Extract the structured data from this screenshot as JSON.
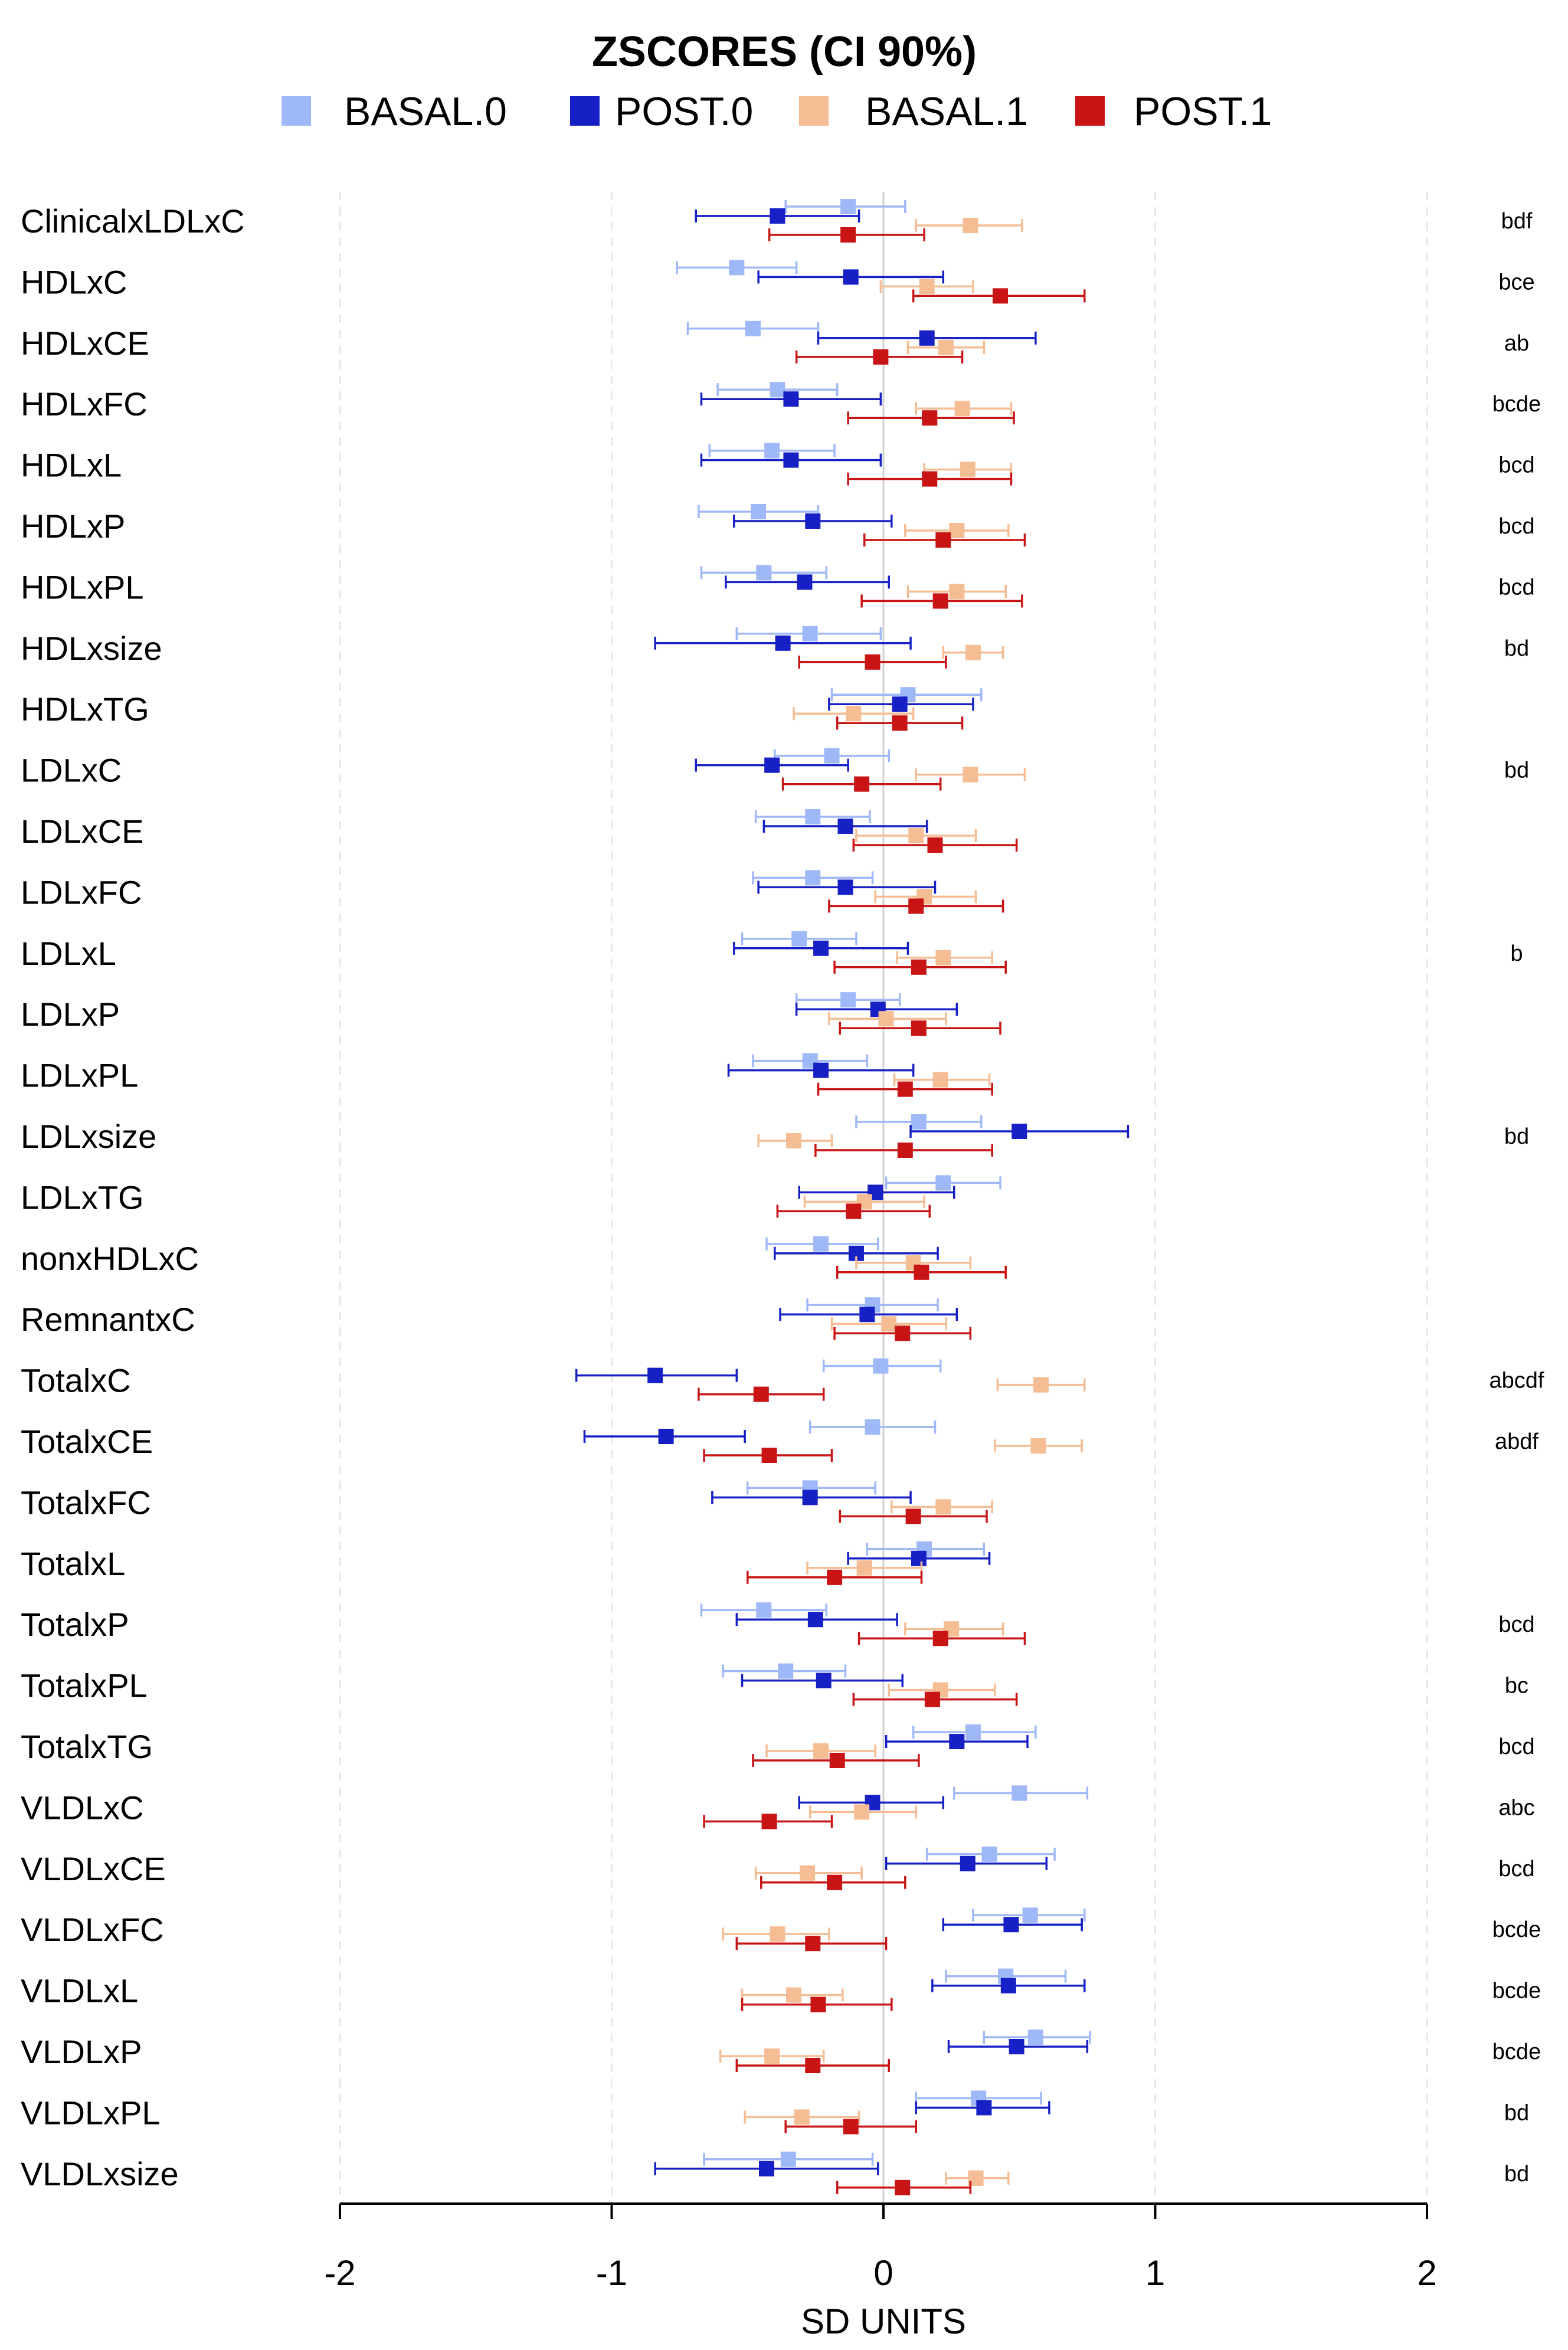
{
  "chart_data": {
    "type": "forest",
    "title": "ZSCORES (CI 90%)",
    "xlabel": "SD UNITS",
    "ylabel": "",
    "xlim": [
      -2,
      2
    ],
    "xticks": [
      "-2",
      "-1",
      "0",
      "1",
      "2"
    ],
    "xtick_values": [
      -2,
      -1,
      0,
      1,
      2
    ],
    "gridlines": "dashed vertical at -2, -1, 1, 2; solid at 0",
    "legend_position": "top",
    "series": [
      {
        "name": "BASAL.0",
        "color": "#9fb8f7"
      },
      {
        "name": "POST.0",
        "color": "#1620c4"
      },
      {
        "name": "BASAL.1",
        "color": "#f5bd93"
      },
      {
        "name": "POST.1",
        "color": "#c81414"
      }
    ],
    "rows": [
      {
        "label": "ClinicalxLDLxC",
        "sig": "bdf",
        "values": [
          [
            -0.13,
            -0.36,
            0.08
          ],
          [
            -0.39,
            -0.69,
            -0.09
          ],
          [
            0.32,
            0.12,
            0.51
          ],
          [
            -0.13,
            -0.42,
            0.15
          ]
        ]
      },
      {
        "label": "HDLxC",
        "sig": "bce",
        "values": [
          [
            -0.54,
            -0.76,
            -0.32
          ],
          [
            -0.12,
            -0.46,
            0.22
          ],
          [
            0.16,
            -0.01,
            0.33
          ],
          [
            0.43,
            0.11,
            0.74
          ]
        ]
      },
      {
        "label": "HDLxCE",
        "sig": "ab",
        "values": [
          [
            -0.48,
            -0.72,
            -0.24
          ],
          [
            0.16,
            -0.24,
            0.56
          ],
          [
            0.23,
            0.09,
            0.37
          ],
          [
            -0.01,
            -0.32,
            0.29
          ]
        ]
      },
      {
        "label": "HDLxFC",
        "sig": "bcde",
        "values": [
          [
            -0.39,
            -0.61,
            -0.17
          ],
          [
            -0.34,
            -0.67,
            -0.01
          ],
          [
            0.29,
            0.12,
            0.47
          ],
          [
            0.17,
            -0.13,
            0.48
          ]
        ]
      },
      {
        "label": "HDLxL",
        "sig": "bcd",
        "values": [
          [
            -0.41,
            -0.64,
            -0.18
          ],
          [
            -0.34,
            -0.67,
            -0.01
          ],
          [
            0.31,
            0.15,
            0.47
          ],
          [
            0.17,
            -0.13,
            0.47
          ]
        ]
      },
      {
        "label": "HDLxP",
        "sig": "bcd",
        "values": [
          [
            -0.46,
            -0.68,
            -0.24
          ],
          [
            -0.26,
            -0.55,
            0.03
          ],
          [
            0.27,
            0.08,
            0.46
          ],
          [
            0.22,
            -0.07,
            0.52
          ]
        ]
      },
      {
        "label": "HDLxPL",
        "sig": "bcd",
        "values": [
          [
            -0.44,
            -0.67,
            -0.21
          ],
          [
            -0.29,
            -0.58,
            0.02
          ],
          [
            0.27,
            0.09,
            0.45
          ],
          [
            0.21,
            -0.08,
            0.51
          ]
        ]
      },
      {
        "label": "HDLxsize",
        "sig": "bd",
        "values": [
          [
            -0.27,
            -0.54,
            -0.01
          ],
          [
            -0.37,
            -0.84,
            0.1
          ],
          [
            0.33,
            0.22,
            0.44
          ],
          [
            -0.04,
            -0.31,
            0.23
          ]
        ]
      },
      {
        "label": "HDLxTG",
        "sig": "",
        "values": [
          [
            0.09,
            -0.19,
            0.36
          ],
          [
            0.06,
            -0.2,
            0.33
          ],
          [
            -0.11,
            -0.33,
            0.11
          ],
          [
            0.06,
            -0.17,
            0.29
          ]
        ]
      },
      {
        "label": "LDLxC",
        "sig": "bd",
        "values": [
          [
            -0.19,
            -0.4,
            0.02
          ],
          [
            -0.41,
            -0.69,
            -0.13
          ],
          [
            0.32,
            0.12,
            0.52
          ],
          [
            -0.08,
            -0.37,
            0.21
          ]
        ]
      },
      {
        "label": "LDLxCE",
        "sig": "",
        "values": [
          [
            -0.26,
            -0.47,
            -0.05
          ],
          [
            -0.14,
            -0.44,
            0.16
          ],
          [
            0.12,
            -0.1,
            0.34
          ],
          [
            0.19,
            -0.11,
            0.49
          ]
        ]
      },
      {
        "label": "LDLxFC",
        "sig": "",
        "values": [
          [
            -0.26,
            -0.48,
            -0.04
          ],
          [
            -0.14,
            -0.46,
            0.19
          ],
          [
            0.15,
            -0.03,
            0.34
          ],
          [
            0.12,
            -0.2,
            0.44
          ]
        ]
      },
      {
        "label": "LDLxL",
        "sig": "b",
        "values": [
          [
            -0.31,
            -0.52,
            -0.1
          ],
          [
            -0.23,
            -0.55,
            0.09
          ],
          [
            0.22,
            0.05,
            0.4
          ],
          [
            0.13,
            -0.18,
            0.45
          ]
        ]
      },
      {
        "label": "LDLxP",
        "sig": "",
        "values": [
          [
            -0.13,
            -0.32,
            0.06
          ],
          [
            -0.02,
            -0.32,
            0.27
          ],
          [
            0.01,
            -0.2,
            0.23
          ],
          [
            0.13,
            -0.16,
            0.43
          ]
        ]
      },
      {
        "label": "LDLxPL",
        "sig": "",
        "values": [
          [
            -0.27,
            -0.48,
            -0.06
          ],
          [
            -0.23,
            -0.57,
            0.11
          ],
          [
            0.21,
            0.04,
            0.39
          ],
          [
            0.08,
            -0.24,
            0.4
          ]
        ]
      },
      {
        "label": "LDLxsize",
        "sig": "bd",
        "values": [
          [
            0.13,
            -0.1,
            0.36
          ],
          [
            0.5,
            0.1,
            0.9
          ],
          [
            -0.33,
            -0.46,
            -0.19
          ],
          [
            0.08,
            -0.25,
            0.4
          ]
        ]
      },
      {
        "label": "LDLxTG",
        "sig": "",
        "values": [
          [
            0.22,
            0.01,
            0.43
          ],
          [
            -0.03,
            -0.31,
            0.26
          ],
          [
            -0.07,
            -0.29,
            0.15
          ],
          [
            -0.11,
            -0.39,
            0.17
          ]
        ]
      },
      {
        "label": "nonxHDLxC",
        "sig": "",
        "values": [
          [
            -0.23,
            -0.43,
            -0.02
          ],
          [
            -0.1,
            -0.4,
            0.2
          ],
          [
            0.11,
            -0.1,
            0.32
          ],
          [
            0.14,
            -0.17,
            0.45
          ]
        ]
      },
      {
        "label": "RemnantxC",
        "sig": "",
        "values": [
          [
            -0.04,
            -0.28,
            0.2
          ],
          [
            -0.06,
            -0.38,
            0.27
          ],
          [
            0.02,
            -0.19,
            0.23
          ],
          [
            0.07,
            -0.18,
            0.32
          ]
        ]
      },
      {
        "label": "TotalxC",
        "sig": "abcdf",
        "values": [
          [
            -0.01,
            -0.22,
            0.21
          ],
          [
            -0.84,
            -1.13,
            -0.54
          ],
          [
            0.58,
            0.42,
            0.74
          ],
          [
            -0.45,
            -0.68,
            -0.22
          ]
        ]
      },
      {
        "label": "TotalxCE",
        "sig": "abdf",
        "values": [
          [
            -0.04,
            -0.27,
            0.19
          ],
          [
            -0.8,
            -1.1,
            -0.51
          ],
          [
            0.57,
            0.41,
            0.73
          ],
          [
            -0.42,
            -0.66,
            -0.19
          ]
        ]
      },
      {
        "label": "TotalxFC",
        "sig": "",
        "values": [
          [
            -0.27,
            -0.5,
            -0.03
          ],
          [
            -0.27,
            -0.63,
            0.1
          ],
          [
            0.22,
            0.03,
            0.4
          ],
          [
            0.11,
            -0.16,
            0.38
          ]
        ]
      },
      {
        "label": "TotalxL",
        "sig": "",
        "values": [
          [
            0.15,
            -0.06,
            0.37
          ],
          [
            0.13,
            -0.13,
            0.39
          ],
          [
            -0.07,
            -0.28,
            0.14
          ],
          [
            -0.18,
            -0.5,
            0.14
          ]
        ]
      },
      {
        "label": "TotalxP",
        "sig": "bcd",
        "values": [
          [
            -0.44,
            -0.67,
            -0.21
          ],
          [
            -0.25,
            -0.54,
            0.05
          ],
          [
            0.25,
            0.08,
            0.44
          ],
          [
            0.21,
            -0.09,
            0.52
          ]
        ]
      },
      {
        "label": "TotalxPL",
        "sig": "bc",
        "values": [
          [
            -0.36,
            -0.59,
            -0.14
          ],
          [
            -0.22,
            -0.52,
            0.07
          ],
          [
            0.21,
            0.02,
            0.41
          ],
          [
            0.18,
            -0.11,
            0.49
          ]
        ]
      },
      {
        "label": "TotalxTG",
        "sig": "bcd",
        "values": [
          [
            0.33,
            0.11,
            0.56
          ],
          [
            0.27,
            0.01,
            0.53
          ],
          [
            -0.23,
            -0.43,
            -0.03
          ],
          [
            -0.17,
            -0.48,
            0.13
          ]
        ]
      },
      {
        "label": "VLDLxC",
        "sig": "abc",
        "values": [
          [
            0.5,
            0.26,
            0.75
          ],
          [
            -0.04,
            -0.31,
            0.22
          ],
          [
            -0.08,
            -0.27,
            0.12
          ],
          [
            -0.42,
            -0.66,
            -0.19
          ]
        ]
      },
      {
        "label": "VLDLxCE",
        "sig": "bcd",
        "values": [
          [
            0.39,
            0.16,
            0.63
          ],
          [
            0.31,
            0.01,
            0.6
          ],
          [
            -0.28,
            -0.47,
            -0.08
          ],
          [
            -0.18,
            -0.45,
            0.08
          ]
        ]
      },
      {
        "label": "VLDLxFC",
        "sig": "bcde",
        "values": [
          [
            0.54,
            0.33,
            0.74
          ],
          [
            0.47,
            0.22,
            0.73
          ],
          [
            -0.39,
            -0.59,
            -0.2
          ],
          [
            -0.26,
            -0.54,
            0.01
          ]
        ]
      },
      {
        "label": "VLDLxL",
        "sig": "bcde",
        "values": [
          [
            0.45,
            0.23,
            0.67
          ],
          [
            0.46,
            0.18,
            0.74
          ],
          [
            -0.33,
            -0.52,
            -0.15
          ],
          [
            -0.24,
            -0.52,
            0.03
          ]
        ]
      },
      {
        "label": "VLDLxP",
        "sig": "bcde",
        "values": [
          [
            0.56,
            0.37,
            0.76
          ],
          [
            0.49,
            0.24,
            0.75
          ],
          [
            -0.41,
            -0.6,
            -0.22
          ],
          [
            -0.26,
            -0.54,
            0.02
          ]
        ]
      },
      {
        "label": "VLDLxPL",
        "sig": "bd",
        "values": [
          [
            0.35,
            0.12,
            0.58
          ],
          [
            0.37,
            0.12,
            0.61
          ],
          [
            -0.3,
            -0.51,
            -0.09
          ],
          [
            -0.12,
            -0.36,
            0.12
          ]
        ]
      },
      {
        "label": "VLDLxsize",
        "sig": "bd",
        "values": [
          [
            -0.35,
            -0.66,
            -0.04
          ],
          [
            -0.43,
            -0.84,
            -0.02
          ],
          [
            0.34,
            0.23,
            0.46
          ],
          [
            0.07,
            -0.17,
            0.32
          ]
        ]
      }
    ]
  }
}
